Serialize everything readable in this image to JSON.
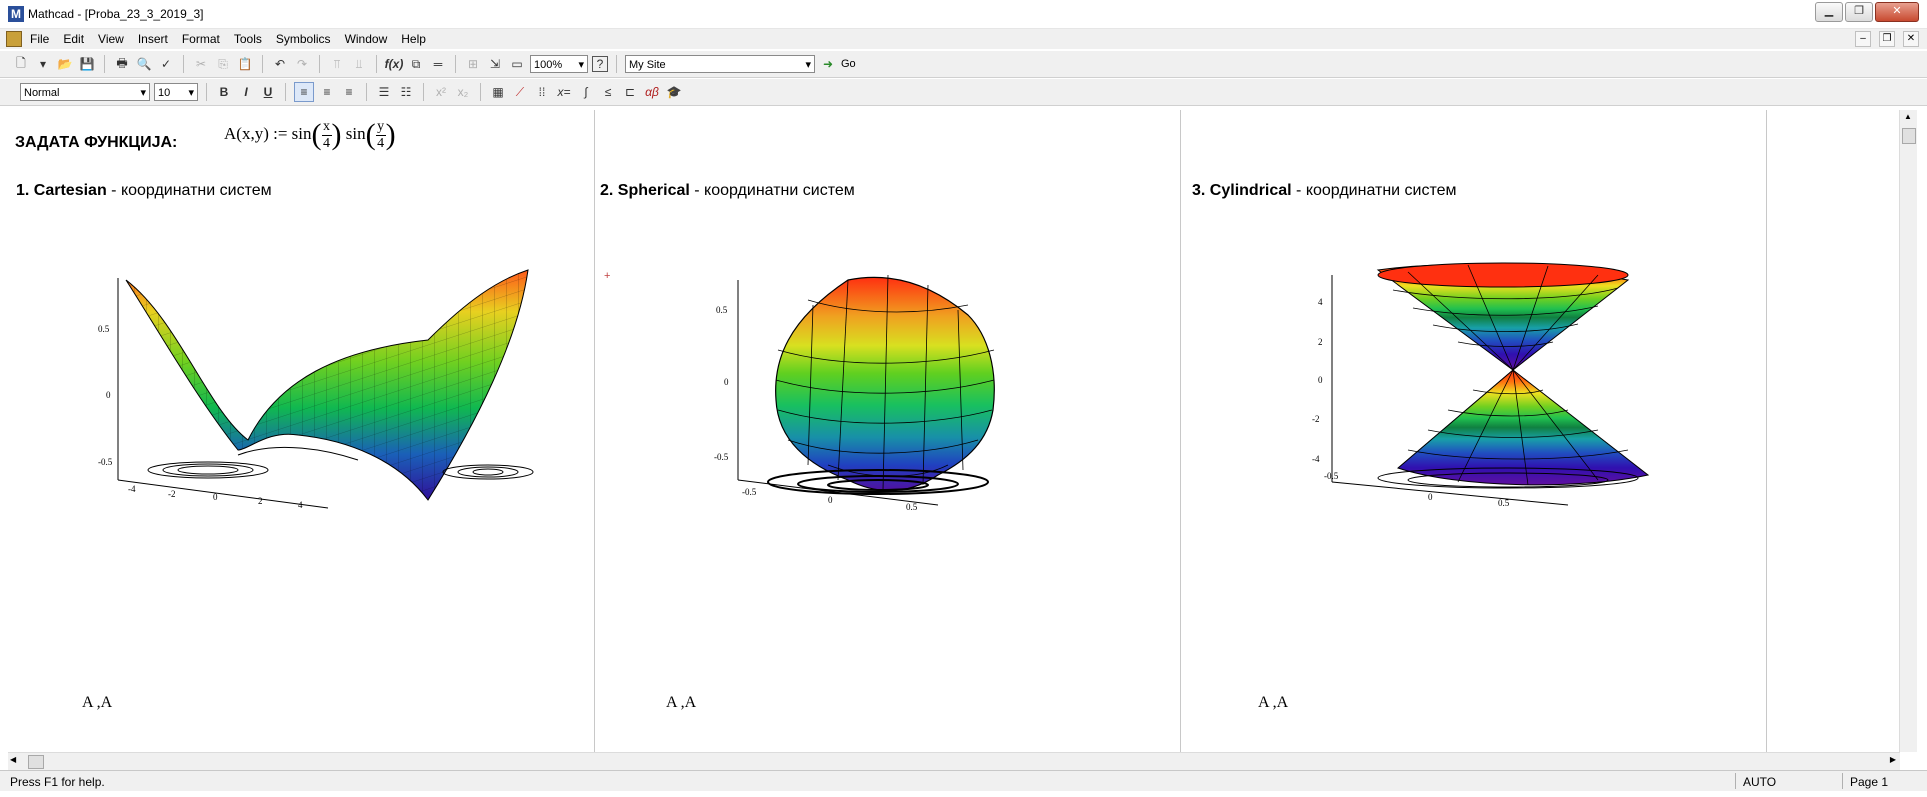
{
  "window": {
    "title": "Mathcad - [Proba_23_3_2019_3]",
    "icon_glyph": "M"
  },
  "menu": [
    "File",
    "Edit",
    "View",
    "Insert",
    "Format",
    "Tools",
    "Symbolics",
    "Window",
    "Help"
  ],
  "toolbar": {
    "zoom": "100%",
    "site": "My Site",
    "go_label": "Go",
    "style": "Normal",
    "font_size": "10",
    "bold": "B",
    "italic": "I",
    "underline": "U"
  },
  "document": {
    "function_heading": "ЗАДАТА ФУНКЦИЈА:",
    "formula": {
      "lhs": "A(x,y) := sin",
      "mid": "sin",
      "x_num": "x",
      "y_num": "y",
      "den": "4"
    },
    "sections": [
      {
        "num": "1.",
        "name": "Cartesian",
        "suffix": " - координатни систем",
        "plot_label": "A ,A"
      },
      {
        "num": "2.",
        "name": "Spherical",
        "suffix": " - координатни систем",
        "plot_label": "A ,A"
      },
      {
        "num": "3.",
        "name": "Cylindrical",
        "suffix": " - координатни систем",
        "plot_label": "A ,A"
      }
    ],
    "plot1_axis": {
      "z": [
        "0.5",
        "0",
        "-0.5"
      ],
      "x": [
        "-4",
        "-2",
        "0",
        "2",
        "4"
      ]
    },
    "plot2_axis": {
      "z": [
        "0.5",
        "0",
        "-0.5"
      ],
      "x": [
        "-0.5",
        "0",
        "0.5"
      ]
    },
    "plot3_axis": {
      "z": [
        "4",
        "2",
        "0",
        "-2",
        "-4"
      ],
      "x": [
        "-0.5",
        "0",
        "0.5"
      ]
    }
  },
  "status": {
    "help": "Press F1 for help.",
    "mode": "AUTO",
    "page": "Page 1"
  }
}
